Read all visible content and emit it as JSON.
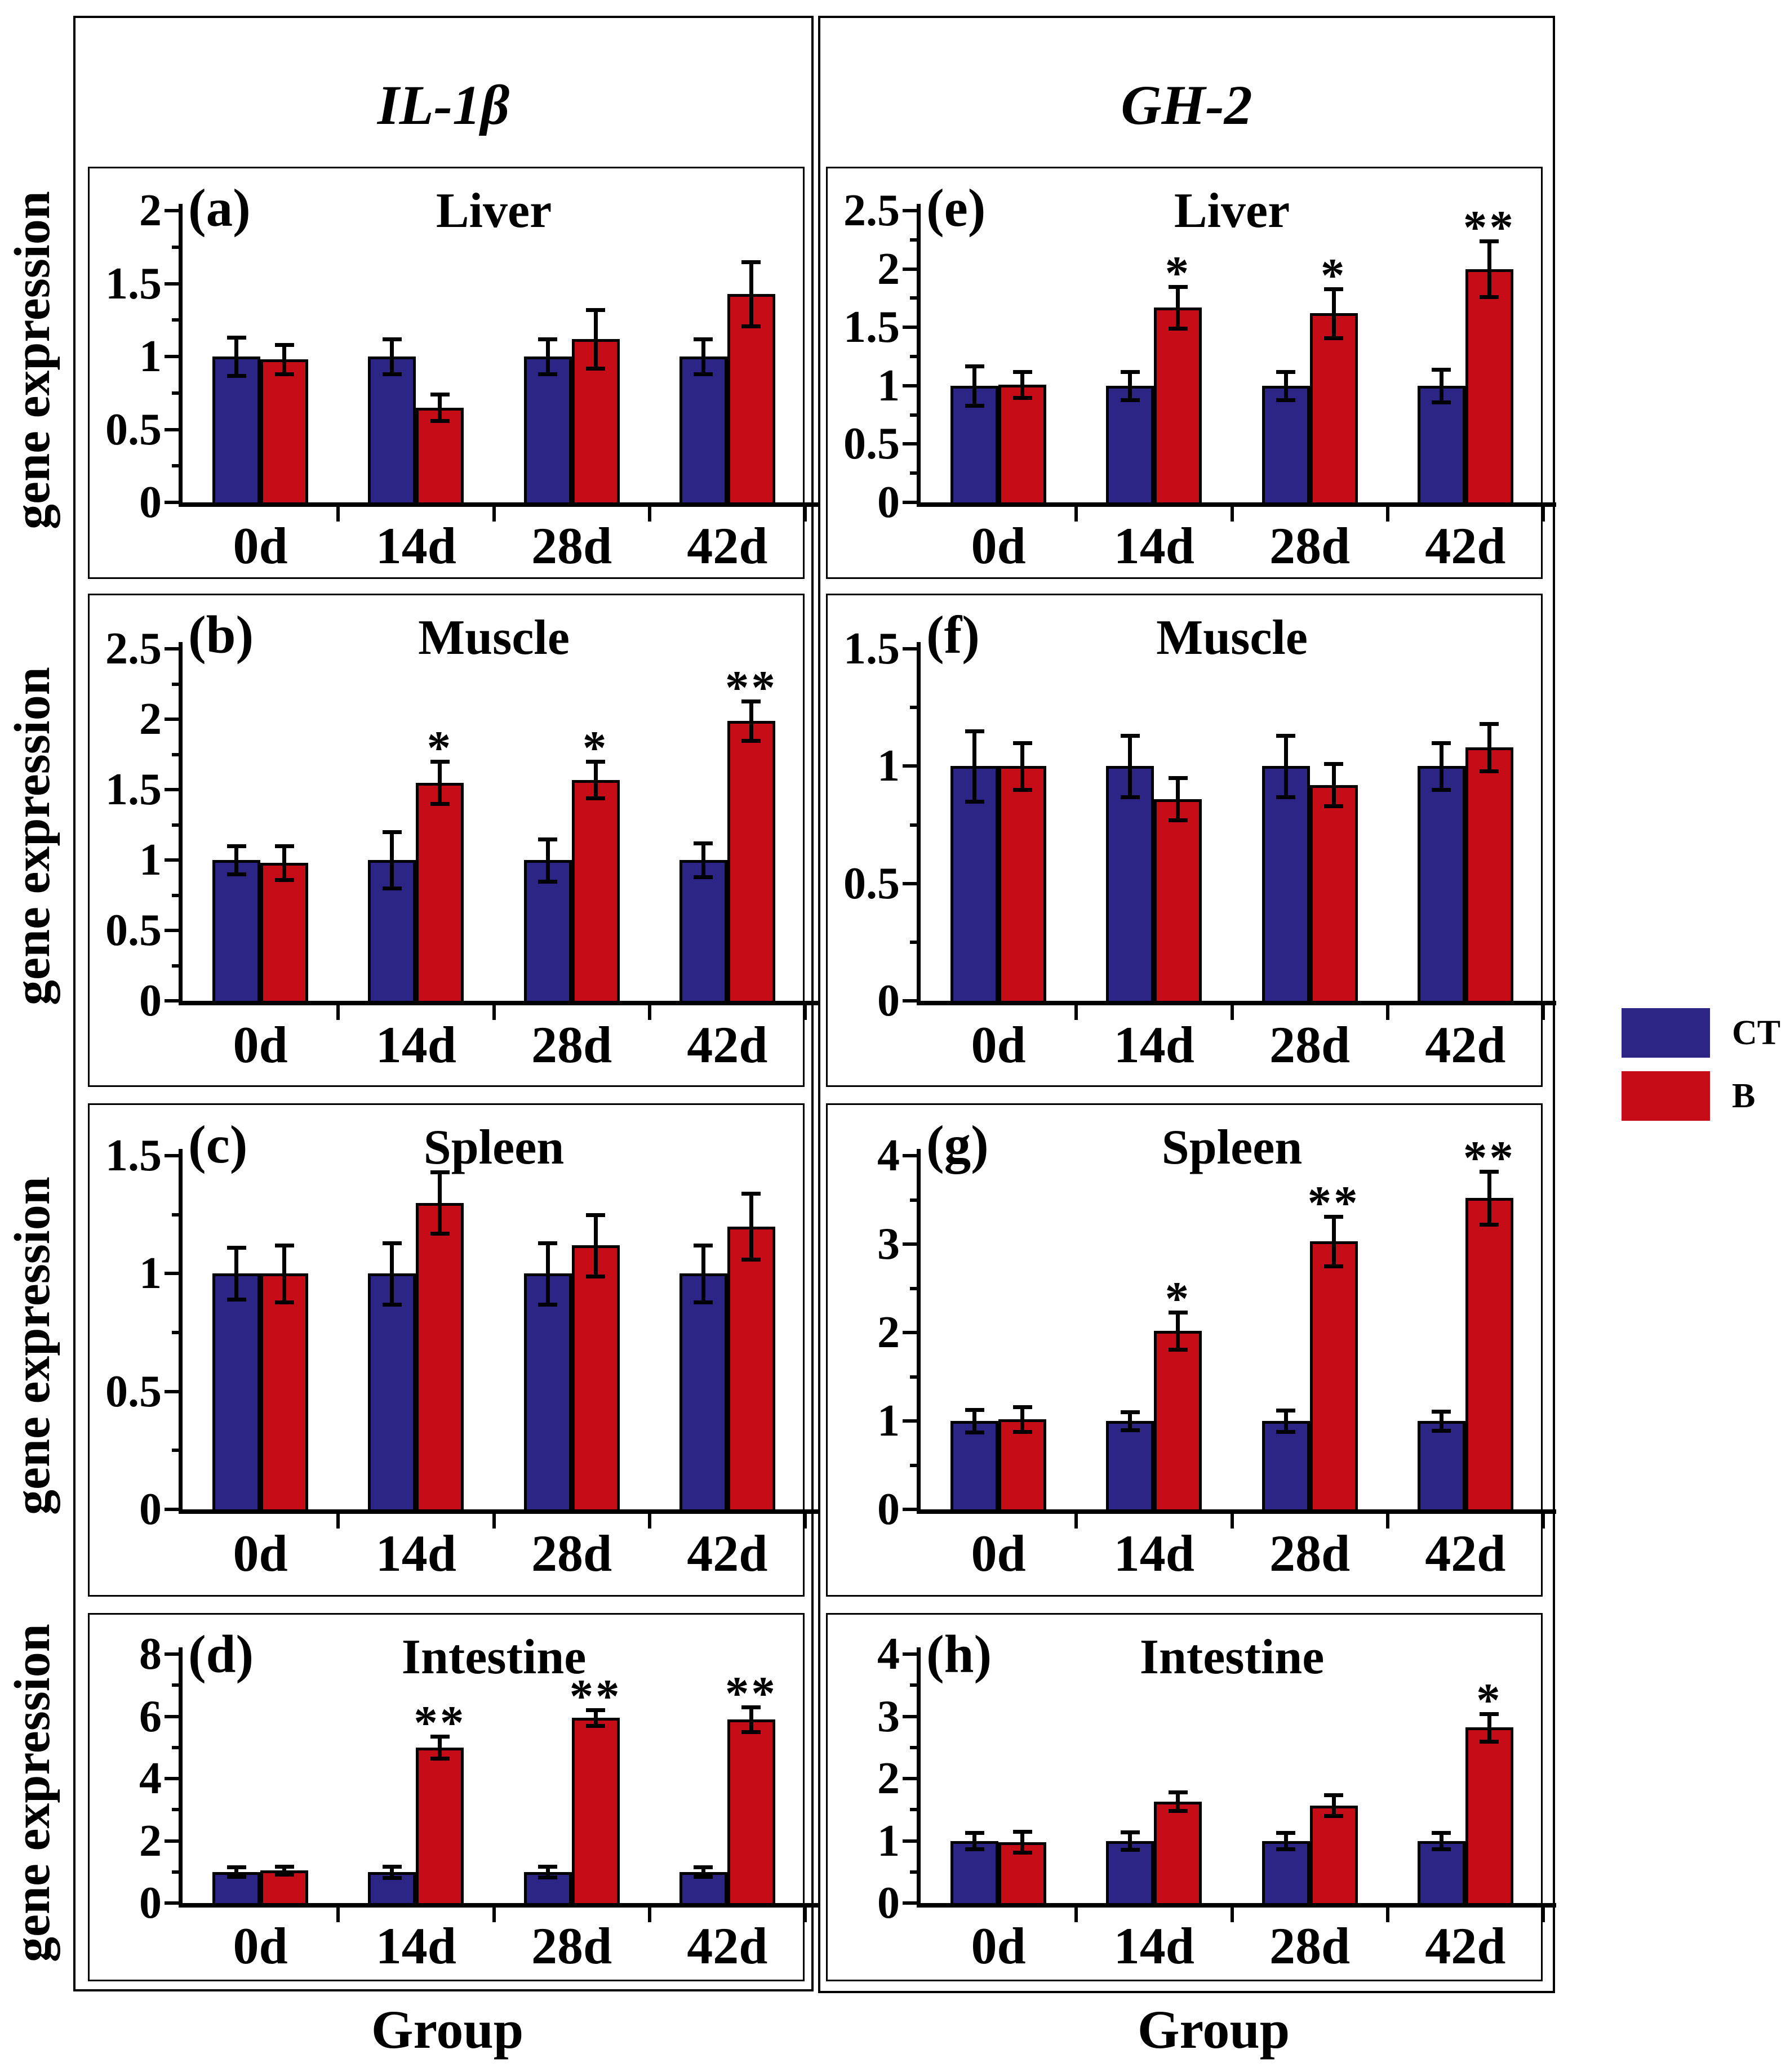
{
  "figure": {
    "column_titles": [
      "IL-1β",
      "GH-2"
    ],
    "y_axis_label": "gene expression",
    "x_axis_label": "Group",
    "legend": {
      "items": [
        {
          "label": "CT",
          "color": "#2c2585"
        },
        {
          "label": "B",
          "color": "#c60d17"
        }
      ]
    },
    "significance_symbols": {
      "single": "*",
      "double": "**"
    }
  },
  "chart_data": [
    {
      "type": "bar",
      "panel": "(a)",
      "gene": "IL-1β",
      "title": "Liver",
      "column": 0,
      "row": 0,
      "categories": [
        "0d",
        "14d",
        "28d",
        "42d"
      ],
      "ylim": [
        0,
        2
      ],
      "yticks": [
        0,
        0.5,
        1,
        1.5,
        2
      ],
      "series": [
        {
          "name": "CT",
          "values": [
            1.0,
            1.0,
            1.0,
            1.0
          ],
          "errors": [
            0.13,
            0.12,
            0.12,
            0.12
          ]
        },
        {
          "name": "B",
          "values": [
            0.98,
            0.65,
            1.12,
            1.43
          ],
          "errors": [
            0.1,
            0.09,
            0.2,
            0.22
          ]
        }
      ],
      "significance": [
        "",
        "",
        "",
        ""
      ]
    },
    {
      "type": "bar",
      "panel": "(b)",
      "gene": "IL-1β",
      "title": "Muscle",
      "column": 0,
      "row": 1,
      "categories": [
        "0d",
        "14d",
        "28d",
        "42d"
      ],
      "ylim": [
        0,
        2.5
      ],
      "yticks": [
        0,
        0.5,
        1,
        1.5,
        2,
        2.5
      ],
      "series": [
        {
          "name": "CT",
          "values": [
            1.0,
            1.0,
            1.0,
            1.0
          ],
          "errors": [
            0.1,
            0.2,
            0.15,
            0.12
          ]
        },
        {
          "name": "B",
          "values": [
            0.98,
            1.55,
            1.57,
            1.99
          ],
          "errors": [
            0.12,
            0.15,
            0.13,
            0.14
          ]
        }
      ],
      "significance": [
        "",
        "*",
        "*",
        "**"
      ]
    },
    {
      "type": "bar",
      "panel": "(c)",
      "gene": "IL-1β",
      "title": "Spleen",
      "column": 0,
      "row": 2,
      "categories": [
        "0d",
        "14d",
        "28d",
        "42d"
      ],
      "ylim": [
        0,
        1.5
      ],
      "yticks": [
        0,
        0.5,
        1,
        1.5
      ],
      "series": [
        {
          "name": "CT",
          "values": [
            1.0,
            1.0,
            1.0,
            1.0
          ],
          "errors": [
            0.11,
            0.13,
            0.13,
            0.12
          ]
        },
        {
          "name": "B",
          "values": [
            1.0,
            1.3,
            1.12,
            1.2
          ],
          "errors": [
            0.12,
            0.13,
            0.13,
            0.14
          ]
        }
      ],
      "significance": [
        "",
        "",
        "",
        ""
      ]
    },
    {
      "type": "bar",
      "panel": "(d)",
      "gene": "IL-1β",
      "title": "Intestine",
      "column": 0,
      "row": 3,
      "categories": [
        "0d",
        "14d",
        "28d",
        "42d"
      ],
      "ylim": [
        0,
        8
      ],
      "yticks": [
        0,
        2,
        4,
        6,
        8
      ],
      "series": [
        {
          "name": "CT",
          "values": [
            1.0,
            1.0,
            1.0,
            1.0
          ],
          "errors": [
            0.15,
            0.18,
            0.17,
            0.15
          ]
        },
        {
          "name": "B",
          "values": [
            1.05,
            5.0,
            5.95,
            5.9
          ],
          "errors": [
            0.12,
            0.35,
            0.25,
            0.4
          ]
        }
      ],
      "significance": [
        "",
        "**",
        "**",
        "**"
      ]
    },
    {
      "type": "bar",
      "panel": "(e)",
      "gene": "GH-2",
      "title": "Liver",
      "column": 1,
      "row": 0,
      "categories": [
        "0d",
        "14d",
        "28d",
        "42d"
      ],
      "ylim": [
        0,
        2.5
      ],
      "yticks": [
        0,
        0.5,
        1,
        1.5,
        2,
        2.5
      ],
      "series": [
        {
          "name": "CT",
          "values": [
            1.0,
            1.0,
            1.0,
            1.0
          ],
          "errors": [
            0.17,
            0.12,
            0.12,
            0.14
          ]
        },
        {
          "name": "B",
          "values": [
            1.01,
            1.67,
            1.62,
            2.0
          ],
          "errors": [
            0.11,
            0.18,
            0.21,
            0.24
          ]
        }
      ],
      "significance": [
        "",
        "*",
        "*",
        "**"
      ]
    },
    {
      "type": "bar",
      "panel": "(f)",
      "gene": "GH-2",
      "title": "Muscle",
      "column": 1,
      "row": 1,
      "categories": [
        "0d",
        "14d",
        "28d",
        "42d"
      ],
      "ylim": [
        0,
        1.5
      ],
      "yticks": [
        0,
        0.5,
        1,
        1.5
      ],
      "series": [
        {
          "name": "CT",
          "values": [
            1.0,
            1.0,
            1.0,
            1.0
          ],
          "errors": [
            0.15,
            0.13,
            0.13,
            0.1
          ]
        },
        {
          "name": "B",
          "values": [
            1.0,
            0.86,
            0.92,
            1.08
          ],
          "errors": [
            0.1,
            0.09,
            0.09,
            0.1
          ]
        }
      ],
      "significance": [
        "",
        "",
        "",
        ""
      ]
    },
    {
      "type": "bar",
      "panel": "(g)",
      "gene": "GH-2",
      "title": "Spleen",
      "column": 1,
      "row": 2,
      "categories": [
        "0d",
        "14d",
        "28d",
        "42d"
      ],
      "ylim": [
        0,
        4
      ],
      "yticks": [
        0,
        1,
        2,
        3,
        4
      ],
      "series": [
        {
          "name": "CT",
          "values": [
            1.0,
            1.0,
            1.0,
            1.0
          ],
          "errors": [
            0.13,
            0.1,
            0.12,
            0.11
          ]
        },
        {
          "name": "B",
          "values": [
            1.02,
            2.02,
            3.03,
            3.52
          ],
          "errors": [
            0.14,
            0.21,
            0.28,
            0.3
          ]
        }
      ],
      "significance": [
        "",
        "*",
        "**",
        "**"
      ]
    },
    {
      "type": "bar",
      "panel": "(h)",
      "gene": "GH-2",
      "title": "Intestine",
      "column": 1,
      "row": 3,
      "categories": [
        "0d",
        "14d",
        "28d",
        "42d"
      ],
      "ylim": [
        0,
        4
      ],
      "yticks": [
        0,
        1,
        2,
        3,
        4
      ],
      "series": [
        {
          "name": "CT",
          "values": [
            1.0,
            1.0,
            1.0,
            1.0
          ],
          "errors": [
            0.13,
            0.14,
            0.13,
            0.13
          ]
        },
        {
          "name": "B",
          "values": [
            0.98,
            1.63,
            1.57,
            2.82
          ],
          "errors": [
            0.17,
            0.15,
            0.17,
            0.22
          ]
        }
      ],
      "significance": [
        "",
        "",
        "",
        "*"
      ]
    }
  ]
}
